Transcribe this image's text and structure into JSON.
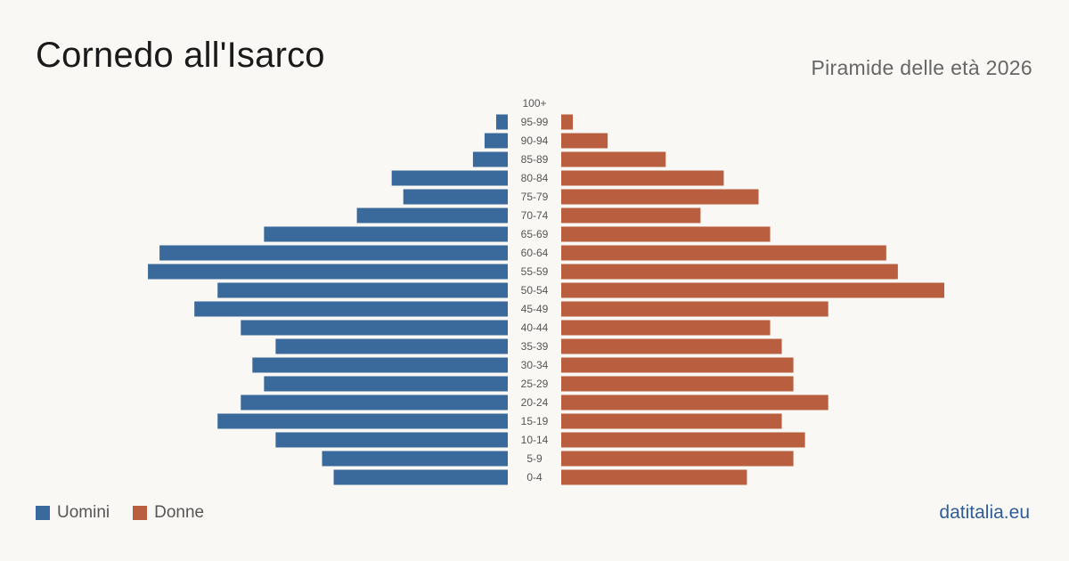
{
  "header": {
    "title": "Cornedo all'Isarco",
    "subtitle": "Piramide delle età 2026"
  },
  "legend": {
    "men_label": "Uomini",
    "women_label": "Donne"
  },
  "footer": {
    "source": "datitalia.eu"
  },
  "colors": {
    "men": "#3a6a9b",
    "women": "#b95f3f",
    "background": "#f9f8f4"
  },
  "chart_data": {
    "type": "bar",
    "orientation": "horizontal-pyramid",
    "title": "Piramide delle età 2026",
    "categories": [
      "100+",
      "95-99",
      "90-94",
      "85-89",
      "80-84",
      "75-79",
      "70-74",
      "65-69",
      "60-64",
      "55-59",
      "50-54",
      "45-49",
      "40-44",
      "35-39",
      "30-34",
      "25-29",
      "20-24",
      "15-19",
      "10-14",
      "5-9",
      "0-4"
    ],
    "series": [
      {
        "name": "Uomini",
        "values": [
          0,
          1,
          2,
          3,
          10,
          9,
          13,
          21,
          30,
          31,
          25,
          27,
          23,
          20,
          22,
          21,
          23,
          25,
          20,
          16,
          15
        ]
      },
      {
        "name": "Donne",
        "values": [
          0,
          1,
          4,
          9,
          14,
          17,
          12,
          18,
          28,
          29,
          33,
          23,
          18,
          19,
          20,
          20,
          23,
          19,
          21,
          20,
          16
        ]
      }
    ],
    "grid": false,
    "legend_position": "bottom-left"
  }
}
